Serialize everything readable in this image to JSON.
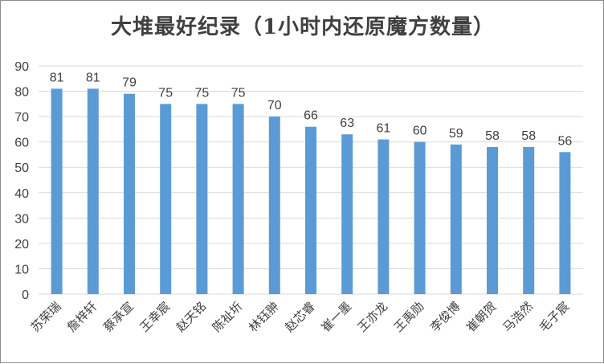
{
  "chart_data": {
    "type": "bar",
    "title": "大堆最好纪录（1小时内还原魔方数量）",
    "categories": [
      "苏荣瑞",
      "詹梓轩",
      "蔡承宣",
      "王幸宸",
      "赵天铭",
      "陈祉圻",
      "林钰翀",
      "赵芯睿",
      "崔一墨",
      "王亦龙",
      "王禹勋",
      "李俊博",
      "崔朝贺",
      "马浩然",
      "毛子宸"
    ],
    "values": [
      81,
      81,
      79,
      75,
      75,
      75,
      70,
      66,
      63,
      61,
      60,
      59,
      58,
      58,
      56
    ],
    "ylim": [
      0,
      90
    ],
    "yticks": [
      0,
      10,
      20,
      30,
      40,
      50,
      60,
      70,
      80,
      90
    ],
    "grid": true,
    "legend": "none",
    "colors": {
      "bar": "#5b9bd5",
      "grid": "#d9d9d9",
      "text": "#404040"
    }
  }
}
